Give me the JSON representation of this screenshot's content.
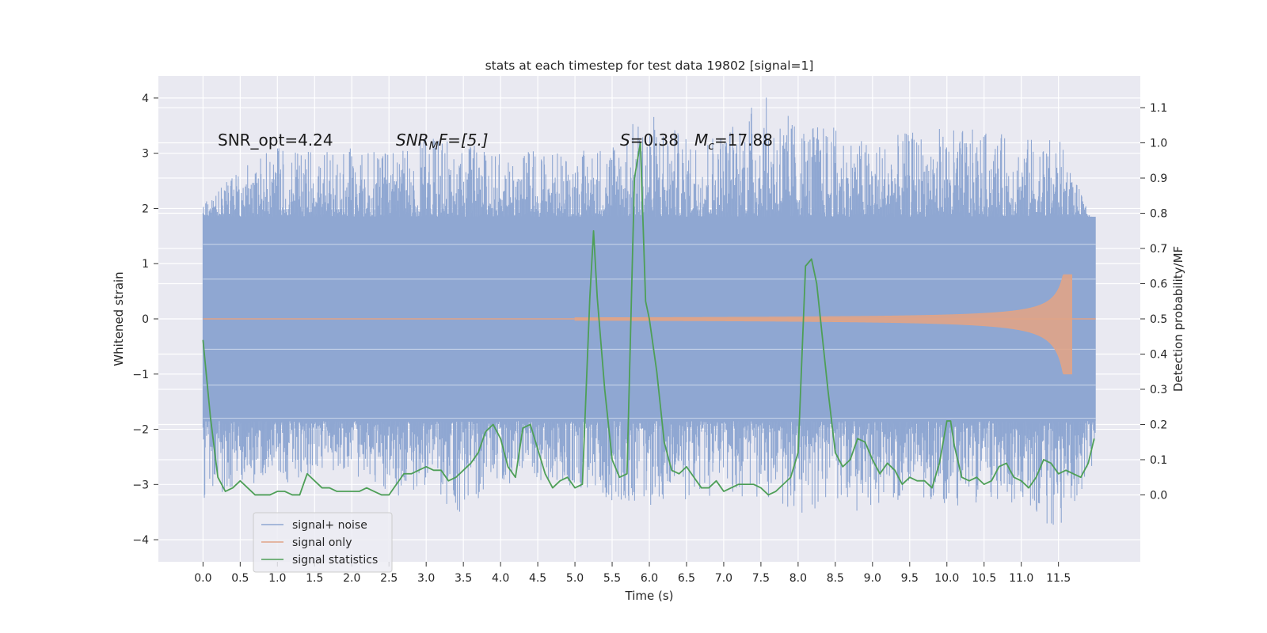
{
  "chart_data": {
    "type": "line",
    "title": "stats at each timestep for test data 19802 [signal=1]",
    "xlabel": "Time (s)",
    "ylabel": "Whitened strain",
    "y2label": "Detection probability/MF",
    "xlim": [
      -0.6,
      12.6
    ],
    "ylim": [
      -4.4,
      4.4
    ],
    "y2lim": [
      -0.19,
      1.19
    ],
    "xticks": [
      0.0,
      0.5,
      1.0,
      1.5,
      2.0,
      2.5,
      3.0,
      3.5,
      4.0,
      4.5,
      5.0,
      5.5,
      6.0,
      6.5,
      7.0,
      7.5,
      8.0,
      8.5,
      9.0,
      9.5,
      10.0,
      10.5,
      11.0,
      11.5
    ],
    "xtick_labels": [
      "0.0",
      "0.5",
      "1.0",
      "1.5",
      "2.0",
      "2.5",
      "3.0",
      "3.5",
      "4.0",
      "4.5",
      "5.0",
      "5.5",
      "6.0",
      "6.5",
      "7.0",
      "7.5",
      "8.0",
      "8.5",
      "9.0",
      "9.5",
      "10.0",
      "10.5",
      "11.0",
      "11.5"
    ],
    "yticks": [
      -4,
      -3,
      -2,
      -1,
      0,
      1,
      2,
      3,
      4
    ],
    "ytick_labels": [
      "−4",
      "−3",
      "−2",
      "−1",
      "0",
      "1",
      "2",
      "3",
      "4"
    ],
    "y2ticks": [
      0.0,
      0.1,
      0.2,
      0.3,
      0.4,
      0.5,
      0.6,
      0.7,
      0.8,
      0.9,
      1.0,
      1.1
    ],
    "y2tick_labels": [
      "0.0",
      "0.1",
      "0.2",
      "0.3",
      "0.4",
      "0.5",
      "0.6",
      "0.7",
      "0.8",
      "0.9",
      "1.0",
      "1.1"
    ],
    "grid": true,
    "legend_position": "lower-left",
    "annotations": {
      "snr_opt": "SNR_opt=4.24",
      "snr_mf_main": "SNR",
      "snr_mf_sub": "M",
      "snr_mf_rest": "F=[5.]",
      "s_sym": "S",
      "s_rest": "=0.38",
      "mc_sym": "M",
      "mc_sub": "c",
      "mc_rest": "=17.88"
    },
    "noise_envelope": {
      "t": [
        0.0,
        0.5,
        1.0,
        1.5,
        2.0,
        2.5,
        3.0,
        3.5,
        4.0,
        4.5,
        5.0,
        5.5,
        6.0,
        6.5,
        7.0,
        7.5,
        8.0,
        8.5,
        9.0,
        9.5,
        10.0,
        10.5,
        11.0,
        11.5,
        12.0
      ],
      "upper": [
        2.1,
        2.7,
        3.2,
        3.0,
        3.1,
        3.0,
        3.3,
        3.2,
        3.0,
        3.1,
        3.0,
        3.3,
        3.8,
        3.3,
        3.5,
        4.1,
        3.6,
        3.5,
        3.2,
        3.4,
        3.5,
        3.4,
        3.3,
        3.3,
        1.6
      ],
      "lower": [
        -3.3,
        -3.0,
        -3.0,
        -2.9,
        -2.8,
        -3.3,
        -3.0,
        -3.7,
        -3.0,
        -3.0,
        -3.1,
        -3.3,
        -3.4,
        -3.3,
        -3.2,
        -3.3,
        -3.6,
        -3.3,
        -3.6,
        -3.2,
        -3.4,
        -3.4,
        -3.3,
        -3.9,
        -2.6
      ],
      "band": 1.85
    },
    "signal_only": {
      "t_start": 5.0,
      "t_end": 11.68,
      "peak_upper": 0.8,
      "peak_lower": -1.0
    },
    "series": [
      {
        "name": "signal+ noise",
        "color": "#8fa7d2"
      },
      {
        "name": "signal only",
        "color": "#e0a487"
      },
      {
        "name": "signal statistics",
        "color": "#4e9f57",
        "x": [
          0.0,
          0.1,
          0.2,
          0.3,
          0.4,
          0.5,
          0.6,
          0.7,
          0.8,
          0.9,
          1.0,
          1.1,
          1.2,
          1.3,
          1.4,
          1.5,
          1.6,
          1.7,
          1.8,
          1.9,
          2.0,
          2.1,
          2.2,
          2.3,
          2.4,
          2.5,
          2.6,
          2.7,
          2.8,
          2.9,
          3.0,
          3.1,
          3.2,
          3.3,
          3.4,
          3.5,
          3.6,
          3.7,
          3.8,
          3.9,
          4.0,
          4.1,
          4.2,
          4.3,
          4.4,
          4.5,
          4.6,
          4.7,
          4.8,
          4.9,
          5.0,
          5.1,
          5.2,
          5.25,
          5.3,
          5.4,
          5.5,
          5.6,
          5.7,
          5.8,
          5.88,
          5.95,
          6.0,
          6.1,
          6.2,
          6.3,
          6.4,
          6.5,
          6.6,
          6.7,
          6.8,
          6.9,
          7.0,
          7.1,
          7.2,
          7.3,
          7.4,
          7.5,
          7.6,
          7.7,
          7.8,
          7.9,
          8.0,
          8.1,
          8.18,
          8.25,
          8.3,
          8.4,
          8.5,
          8.6,
          8.7,
          8.8,
          8.9,
          9.0,
          9.1,
          9.2,
          9.3,
          9.4,
          9.5,
          9.6,
          9.7,
          9.8,
          9.9,
          10.0,
          10.05,
          10.1,
          10.2,
          10.3,
          10.4,
          10.5,
          10.6,
          10.7,
          10.8,
          10.9,
          11.0,
          11.1,
          11.2,
          11.3,
          11.4,
          11.5,
          11.6,
          11.7,
          11.8,
          11.9,
          11.98
        ],
        "values": [
          0.44,
          0.22,
          0.05,
          0.01,
          0.02,
          0.04,
          0.02,
          0.0,
          0.0,
          0.0,
          0.01,
          0.01,
          0.0,
          0.0,
          0.06,
          0.04,
          0.02,
          0.02,
          0.01,
          0.01,
          0.01,
          0.01,
          0.02,
          0.01,
          0.0,
          0.0,
          0.03,
          0.06,
          0.06,
          0.07,
          0.08,
          0.07,
          0.07,
          0.04,
          0.05,
          0.07,
          0.09,
          0.12,
          0.18,
          0.2,
          0.16,
          0.08,
          0.05,
          0.19,
          0.2,
          0.13,
          0.06,
          0.02,
          0.04,
          0.05,
          0.02,
          0.03,
          0.56,
          0.75,
          0.56,
          0.3,
          0.1,
          0.05,
          0.06,
          0.9,
          1.0,
          0.55,
          0.5,
          0.35,
          0.15,
          0.07,
          0.06,
          0.08,
          0.05,
          0.02,
          0.02,
          0.04,
          0.01,
          0.02,
          0.03,
          0.03,
          0.03,
          0.02,
          0.0,
          0.01,
          0.03,
          0.05,
          0.12,
          0.65,
          0.67,
          0.6,
          0.5,
          0.3,
          0.12,
          0.08,
          0.1,
          0.16,
          0.15,
          0.1,
          0.06,
          0.09,
          0.07,
          0.03,
          0.05,
          0.04,
          0.04,
          0.02,
          0.09,
          0.21,
          0.21,
          0.14,
          0.05,
          0.04,
          0.05,
          0.03,
          0.04,
          0.08,
          0.09,
          0.05,
          0.04,
          0.02,
          0.05,
          0.1,
          0.09,
          0.06,
          0.07,
          0.06,
          0.05,
          0.09,
          0.16
        ]
      }
    ]
  }
}
